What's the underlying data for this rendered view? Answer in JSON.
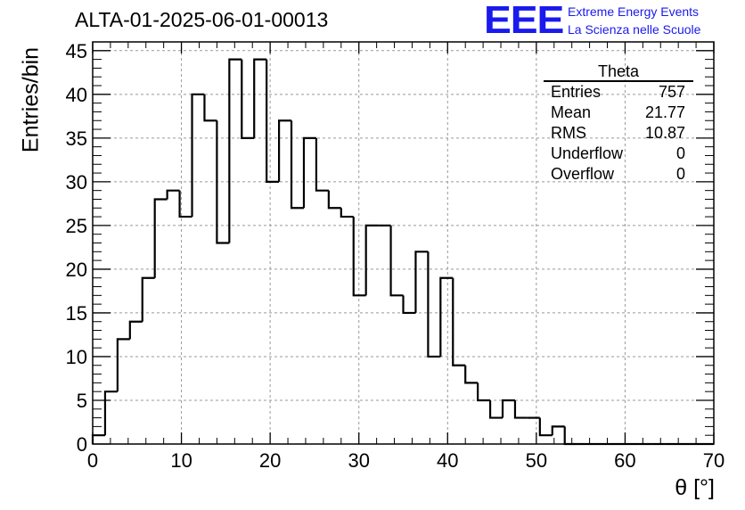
{
  "header": {
    "title": "ALTA-01-2025-06-01-00013",
    "logo_mark": "EEE",
    "logo_line1": "Extreme Energy Events",
    "logo_line2": "La Scienza nelle Scuole"
  },
  "stats": {
    "title": "Theta",
    "rows": [
      {
        "label": "Entries",
        "value": "757"
      },
      {
        "label": "Mean",
        "value": "21.77"
      },
      {
        "label": "RMS",
        "value": "10.87"
      },
      {
        "label": "Underflow",
        "value": "0"
      },
      {
        "label": "Overflow",
        "value": "0"
      }
    ]
  },
  "colors": {
    "accent": "#1a1aee",
    "line": "#000000",
    "grid": "#999999"
  },
  "chart_data": {
    "type": "bar",
    "style": "step-histogram",
    "title": "ALTA-01-2025-06-01-00013",
    "xlabel": "θ [°]",
    "ylabel": "Entries/bin",
    "xlim": [
      0,
      70
    ],
    "ylim": [
      0,
      46
    ],
    "bin_width": 1.4,
    "xticks": [
      0,
      10,
      20,
      30,
      40,
      50,
      60,
      70
    ],
    "yticks": [
      0,
      5,
      10,
      15,
      20,
      25,
      30,
      35,
      40,
      45
    ],
    "grid": true,
    "legend": "top-right",
    "values": [
      1,
      6,
      12,
      14,
      19,
      28,
      29,
      26,
      40,
      37,
      23,
      44,
      35,
      44,
      30,
      37,
      27,
      35,
      29,
      27,
      26,
      17,
      25,
      25,
      17,
      15,
      22,
      10,
      19,
      9,
      7,
      5,
      3,
      5,
      3,
      3,
      1,
      2,
      0,
      0,
      0,
      0,
      0,
      0,
      0,
      0,
      0,
      0,
      0,
      0
    ]
  }
}
